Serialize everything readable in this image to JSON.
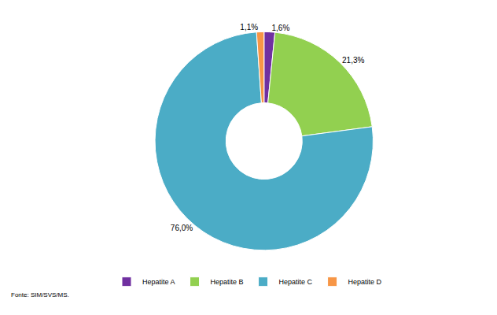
{
  "chart_data": {
    "type": "pie",
    "categories": [
      "Hepatite A",
      "Hepatite B",
      "Hepatite C",
      "Hepatite D"
    ],
    "values": [
      1.6,
      21.3,
      76.0,
      1.1
    ],
    "value_labels": [
      "1,6%",
      "21,3%",
      "76,0%",
      "1,1%"
    ],
    "colors": [
      "#7030a0",
      "#92d050",
      "#4bacc6",
      "#f79646"
    ],
    "data_labels": true,
    "legend": "bottom",
    "annotations": [
      "Fonte: SIM/SVS/MS."
    ]
  }
}
